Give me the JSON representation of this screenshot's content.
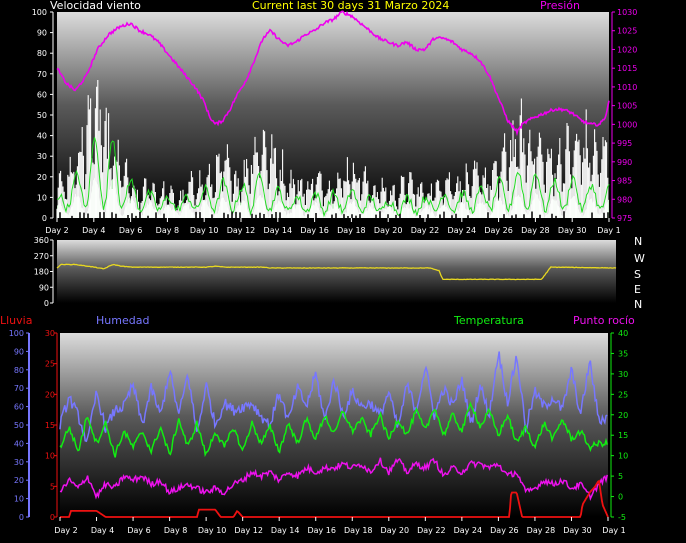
{
  "header": {
    "wind_label": "Velocidad viento",
    "title": "Current last 30 days 31 Marzo 2024",
    "pressure_label": "Presión"
  },
  "lower_header": {
    "rain_label": "Lluvia",
    "humidity_label": "Humedad",
    "temperature_label": "Temperatura",
    "dewpoint_label": "Punto rocío"
  },
  "compass": [
    "N",
    "W",
    "S",
    "E",
    "N"
  ],
  "colors": {
    "wind": "#ffffff",
    "wind_avg": "#22dd22",
    "wind_fill": "#ccffcc",
    "pressure": "#ee00ee",
    "direction": "#e8d820",
    "humidity": "#7777ff",
    "temperature": "#11ee11",
    "dewpoint": "#ee11ee",
    "rain": "#ee1111",
    "title": "#ffff00"
  },
  "chart_data": [
    {
      "type": "line",
      "name": "wind-pressure",
      "x_ticks": [
        "Day 2",
        "Day 4",
        "Day 6",
        "Day 8",
        "Day 10",
        "Day 12",
        "Day 14",
        "Day 16",
        "Day 18",
        "Day 20",
        "Day 22",
        "Day 24",
        "Day 26",
        "Day 28",
        "Day 30",
        "Day 1"
      ],
      "y_left_ticks": [
        0,
        10,
        20,
        30,
        40,
        50,
        60,
        70,
        80,
        90,
        100
      ],
      "y_left_range": [
        0,
        100
      ],
      "y_right_ticks": [
        975,
        980,
        985,
        990,
        995,
        1000,
        1005,
        1010,
        1015,
        1020,
        1025,
        1030
      ],
      "y_right_range": [
        975,
        1030
      ],
      "pressure": {
        "day": [
          1.0,
          1.5,
          2.0,
          2.6,
          3.2,
          3.8,
          4.4,
          5.0,
          5.5,
          6.0,
          6.5,
          7.0,
          7.5,
          8.0,
          8.5,
          9.0,
          9.3,
          9.6,
          10.0,
          10.4,
          10.8,
          11.3,
          11.8,
          12.2,
          12.6,
          13.0,
          13.5,
          14.0,
          14.5,
          15.0,
          15.5,
          16.0,
          16.5,
          17.0,
          17.5,
          18.0,
          18.5,
          19.0,
          19.5,
          20.0,
          20.5,
          21.0,
          21.5,
          22.0,
          22.5,
          23.0,
          23.5,
          24.0,
          24.5,
          25.0,
          25.5,
          26.0,
          26.3,
          26.6,
          27.0,
          27.5,
          28.0,
          28.5,
          29.0,
          29.5,
          30.0,
          30.5,
          30.8,
          31.0
        ],
        "hPa": [
          1015,
          1011,
          1009,
          1013,
          1020,
          1024,
          1026,
          1027,
          1025,
          1024,
          1022,
          1019,
          1016,
          1013,
          1010,
          1006,
          1002,
          1000,
          1001,
          1004,
          1008,
          1012,
          1018,
          1023,
          1025,
          1023,
          1021,
          1022,
          1024,
          1025,
          1027,
          1028,
          1030,
          1029,
          1027,
          1025,
          1023,
          1022,
          1021,
          1022,
          1020,
          1020,
          1023,
          1023,
          1022,
          1020,
          1019,
          1017,
          1013,
          1007,
          1001,
          998,
          1000,
          1001,
          1002,
          1003,
          1004,
          1004,
          1003,
          1001,
          1000,
          1000,
          1002,
          1006
        ]
      },
      "wind_gust_peak": {
        "day": [
          1.0,
          1.5,
          2.0,
          2.5,
          3.0,
          3.5,
          4.0,
          4.5,
          5.0,
          5.5,
          6.0,
          6.5,
          7.0,
          7.5,
          8.0,
          8.5,
          9.0,
          9.5,
          10.0,
          10.5,
          11.0,
          11.5,
          12.0,
          12.5,
          13.0,
          13.5,
          14.0,
          14.5,
          15.0,
          15.5,
          16.0,
          16.5,
          17.0,
          17.5,
          18.0,
          18.5,
          19.0,
          19.5,
          20.0,
          20.5,
          21.0,
          21.5,
          22.0,
          22.5,
          23.0,
          23.5,
          24.0,
          24.5,
          25.0,
          25.5,
          26.0,
          26.5,
          27.0,
          27.5,
          28.0,
          28.5,
          29.0,
          29.5,
          30.0,
          30.5,
          31.0
        ],
        "kmh": [
          25,
          30,
          42,
          60,
          80,
          68,
          45,
          40,
          22,
          15,
          25,
          18,
          20,
          12,
          18,
          28,
          24,
          30,
          40,
          36,
          25,
          48,
          58,
          50,
          40,
          30,
          26,
          24,
          28,
          25,
          26,
          30,
          38,
          33,
          22,
          22,
          20,
          18,
          26,
          22,
          20,
          22,
          30,
          26,
          28,
          28,
          32,
          30,
          36,
          50,
          58,
          62,
          55,
          44,
          42,
          48,
          50,
          58,
          52,
          45,
          52
        ]
      },
      "wind_avg_peak": {
        "day": [
          1.0,
          2.0,
          3.0,
          3.5,
          4.0,
          5.0,
          6.0,
          7.0,
          8.0,
          9.0,
          10.0,
          11.0,
          11.5,
          12.0,
          13.0,
          14.0,
          15.0,
          16.0,
          17.0,
          18.0,
          19.0,
          20.0,
          21.0,
          22.0,
          23.0,
          24.0,
          25.0,
          26.0,
          26.5,
          27.0,
          28.0,
          29.0,
          30.0,
          31.0
        ],
        "kmh": [
          10,
          20,
          38,
          45,
          40,
          18,
          12,
          10,
          10,
          14,
          18,
          14,
          24,
          22,
          14,
          10,
          12,
          12,
          14,
          10,
          8,
          10,
          10,
          12,
          12,
          14,
          18,
          22,
          26,
          22,
          18,
          20,
          16,
          15
        ]
      },
      "wind_avg_trough": {
        "day": [
          1.0,
          5.0,
          10.0,
          15.0,
          20.0,
          25.0,
          31.0
        ],
        "kmh": [
          5,
          4,
          4,
          3,
          3,
          4,
          4
        ]
      }
    },
    {
      "type": "line",
      "name": "wind-direction",
      "y_ticks": [
        0,
        90,
        180,
        270,
        360
      ],
      "y_range": [
        0,
        360
      ],
      "series": [
        {
          "day": [
            1.0,
            1.2,
            2.0,
            3.0,
            3.5,
            4.0,
            4.5,
            5.0,
            9.0,
            9.5,
            10.0,
            12.0,
            12.5,
            21.0,
            21.5,
            21.7,
            27.0,
            27.5,
            31.0
          ],
          "degrees": [
            200,
            220,
            220,
            205,
            195,
            220,
            210,
            205,
            205,
            210,
            205,
            205,
            200,
            200,
            185,
            135,
            135,
            205,
            200
          ]
        }
      ]
    },
    {
      "type": "line",
      "name": "temperature-humidity",
      "y_rain_ticks": [
        0,
        5,
        10,
        15,
        20,
        25,
        30
      ],
      "y_rain_range": [
        0,
        30
      ],
      "y_humidity_ticks": [
        0,
        10,
        20,
        30,
        40,
        50,
        60,
        70,
        80,
        90,
        100
      ],
      "y_humidity_range": [
        0,
        100
      ],
      "y_temp_ticks": [
        -5,
        0,
        5,
        10,
        15,
        20,
        25,
        30,
        35,
        40
      ],
      "y_temp_range": [
        -5,
        40
      ],
      "humidity": {
        "day": [
          1.0,
          1.5,
          2.0,
          2.5,
          3.0,
          3.5,
          4.0,
          4.5,
          5.0,
          5.5,
          6.0,
          6.5,
          7.0,
          7.5,
          8.0,
          8.5,
          9.0,
          9.5,
          10.0,
          10.5,
          11.0,
          11.5,
          12.0,
          12.5,
          13.0,
          13.5,
          14.0,
          14.5,
          15.0,
          15.5,
          16.0,
          16.5,
          17.0,
          17.5,
          18.0,
          18.5,
          19.0,
          19.5,
          20.0,
          20.5,
          21.0,
          21.5,
          22.0,
          22.5,
          23.0,
          23.5,
          24.0,
          24.5,
          25.0,
          25.5,
          26.0,
          26.5,
          27.0,
          27.5,
          28.0,
          28.5,
          29.0,
          29.5,
          30.0,
          30.5,
          31.0
        ],
        "pct": [
          50,
          65,
          55,
          40,
          68,
          48,
          58,
          60,
          72,
          50,
          70,
          55,
          80,
          55,
          78,
          45,
          72,
          50,
          62,
          58,
          60,
          62,
          55,
          50,
          68,
          52,
          70,
          60,
          78,
          52,
          75,
          55,
          68,
          60,
          62,
          55,
          68,
          48,
          72,
          58,
          82,
          55,
          70,
          60,
          75,
          50,
          72,
          55,
          90,
          62,
          88,
          48,
          68,
          60,
          65,
          58,
          80,
          55,
          85,
          52,
          55
        ]
      },
      "temperature": {
        "day": [
          1.0,
          1.5,
          2.0,
          2.5,
          3.0,
          3.5,
          4.0,
          4.5,
          5.0,
          5.5,
          6.0,
          6.5,
          7.0,
          7.5,
          8.0,
          8.5,
          9.0,
          9.5,
          10.0,
          10.5,
          11.0,
          11.5,
          12.0,
          12.5,
          13.0,
          13.5,
          14.0,
          14.5,
          15.0,
          15.5,
          16.0,
          16.5,
          17.0,
          17.5,
          18.0,
          18.5,
          19.0,
          19.5,
          20.0,
          20.5,
          21.0,
          21.5,
          22.0,
          22.5,
          23.0,
          23.5,
          24.0,
          24.5,
          25.0,
          25.5,
          26.0,
          26.5,
          27.0,
          27.5,
          28.0,
          28.5,
          29.0,
          29.5,
          30.0,
          30.5,
          31.0
        ],
        "celsius": [
          12,
          17,
          11,
          20,
          13,
          18,
          10,
          16,
          12,
          16,
          11,
          17,
          10,
          19,
          12,
          18,
          10,
          16,
          12,
          17,
          11,
          18,
          13,
          17,
          11,
          18,
          13,
          19,
          14,
          20,
          15,
          21,
          16,
          19,
          15,
          20,
          14,
          19,
          15,
          21,
          16,
          22,
          15,
          20,
          16,
          23,
          17,
          21,
          15,
          20,
          13,
          17,
          12,
          18,
          14,
          19,
          14,
          16,
          12,
          13,
          13
        ]
      },
      "dewpoint": {
        "day": [
          1.0,
          1.5,
          2.0,
          2.5,
          3.0,
          3.5,
          4.0,
          4.5,
          5.0,
          5.5,
          6.0,
          6.5,
          7.0,
          7.5,
          8.0,
          8.5,
          9.0,
          9.5,
          10.0,
          10.5,
          11.0,
          11.5,
          12.0,
          12.5,
          13.0,
          13.5,
          14.0,
          14.5,
          15.0,
          15.5,
          16.0,
          16.5,
          17.0,
          17.5,
          18.0,
          18.5,
          19.0,
          19.5,
          20.0,
          20.5,
          21.0,
          21.5,
          22.0,
          22.5,
          23.0,
          23.5,
          24.0,
          24.5,
          25.0,
          25.5,
          26.0,
          26.5,
          27.0,
          27.5,
          28.0,
          28.5,
          29.0,
          29.5,
          30.0,
          30.5,
          31.0
        ],
        "celsius": [
          1,
          4,
          2,
          5,
          0,
          3,
          2,
          5,
          4,
          5,
          3,
          4,
          1,
          2,
          3,
          2,
          1,
          2,
          1,
          3,
          4,
          6,
          5,
          6,
          4,
          6,
          5,
          7,
          6,
          7,
          7,
          8,
          7,
          8,
          6,
          9,
          6,
          9,
          6,
          8,
          7,
          9,
          5,
          7,
          6,
          8,
          8,
          7,
          8,
          5,
          6,
          1,
          2,
          4,
          3,
          4,
          2,
          3,
          0,
          3,
          5
        ]
      },
      "rain": {
        "day": [
          1.0,
          1.5,
          1.6,
          2.0,
          2.5,
          3.0,
          3.5,
          8.5,
          8.6,
          9.0,
          9.5,
          9.8,
          10.0,
          10.5,
          10.7,
          11.0,
          25.0,
          25.6,
          25.7,
          26.0,
          26.3,
          29.5,
          29.6,
          30.0,
          30.3,
          30.5,
          30.7,
          31.0
        ],
        "mm": [
          0,
          0,
          1,
          1,
          1,
          1,
          0,
          0,
          1.2,
          1.2,
          1.2,
          0,
          0,
          0,
          1,
          0,
          0,
          0,
          4,
          4,
          0,
          0,
          2,
          4,
          5,
          6,
          2,
          0
        ]
      }
    }
  ]
}
